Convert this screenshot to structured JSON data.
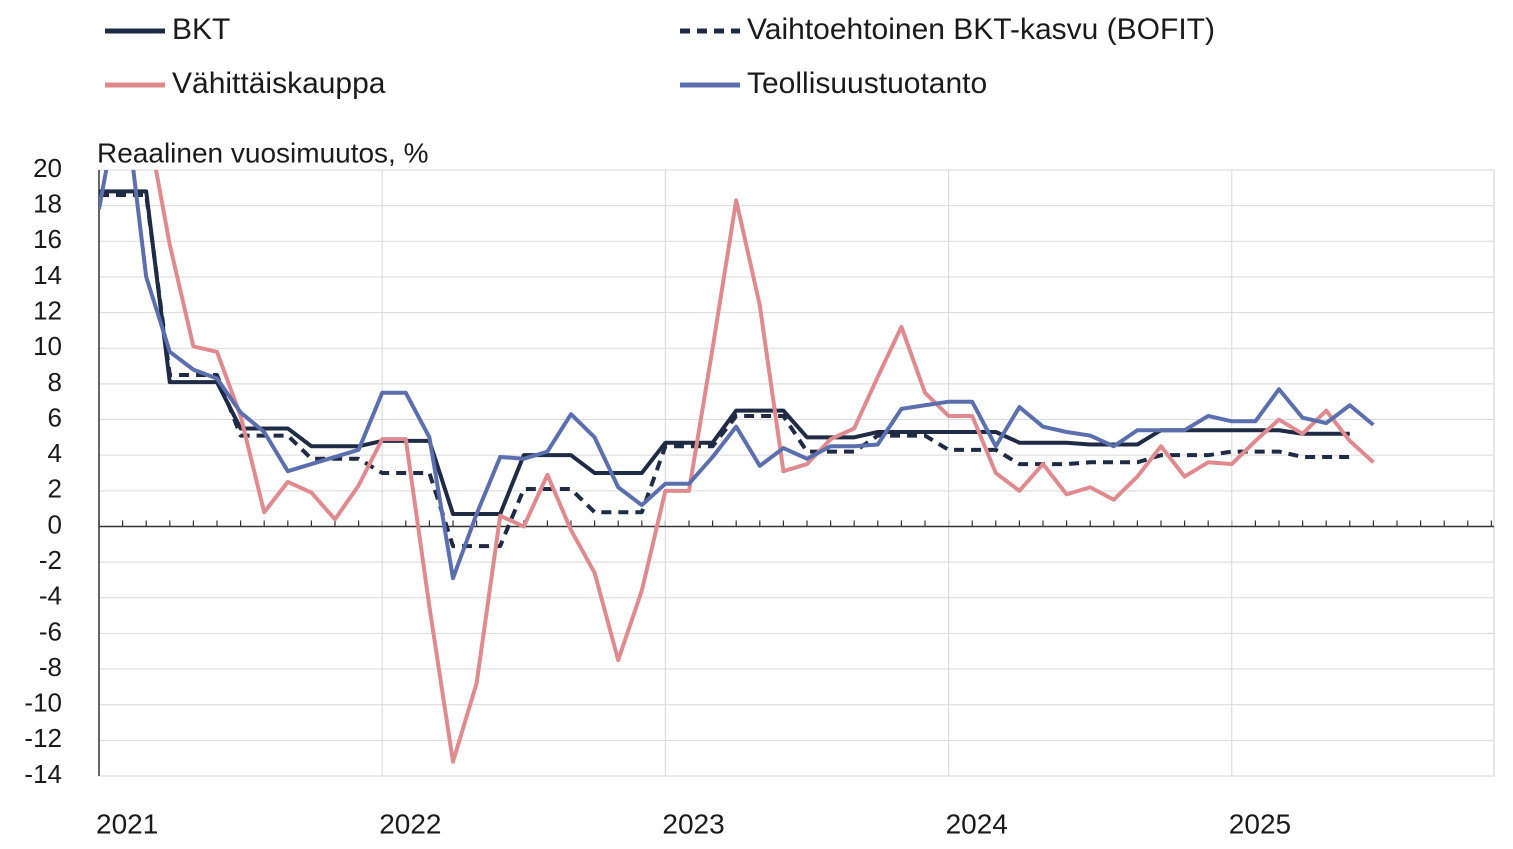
{
  "chart_data": {
    "type": "line",
    "y_label": "Reaalinen vuosimuutos, %",
    "categories": [
      "2021",
      null,
      null,
      null,
      null,
      null,
      null,
      null,
      null,
      null,
      null,
      null,
      "2022",
      null,
      null,
      null,
      null,
      null,
      null,
      null,
      null,
      null,
      null,
      null,
      "2023",
      null,
      null,
      null,
      null,
      null,
      null,
      null,
      null,
      null,
      null,
      null,
      "2024",
      null,
      null,
      null,
      null,
      null,
      null,
      null,
      null,
      null,
      null,
      null,
      "2025",
      null,
      null,
      null,
      null,
      null,
      null,
      null,
      null,
      null,
      null,
      null
    ],
    "series": [
      {
        "name": "BKT",
        "color": "#1f2a44",
        "style": "solid",
        "values": [
          18.8,
          18.8,
          18.8,
          8.1,
          8.1,
          8.1,
          5.5,
          5.5,
          5.5,
          4.5,
          4.5,
          4.5,
          4.8,
          4.8,
          4.8,
          0.7,
          0.7,
          0.7,
          4.0,
          4.0,
          4.0,
          3.0,
          3.0,
          3.0,
          4.7,
          4.7,
          4.7,
          6.5,
          6.5,
          6.5,
          5.0,
          5.0,
          5.0,
          5.3,
          5.3,
          5.3,
          5.3,
          5.3,
          5.3,
          4.7,
          4.7,
          4.7,
          4.6,
          4.6,
          4.6,
          5.4,
          5.4,
          5.4,
          5.4,
          5.4,
          5.4,
          5.2,
          5.2,
          5.2,
          null,
          null,
          null,
          null,
          null,
          null
        ]
      },
      {
        "name": "Vaihtoehtoinen BKT-kasvu (BOFIT)",
        "color": "#1f2a44",
        "style": "dashed",
        "values": [
          18.6,
          18.6,
          18.6,
          8.5,
          8.5,
          8.5,
          5.1,
          5.1,
          5.1,
          3.8,
          3.8,
          3.8,
          3.0,
          3.0,
          3.0,
          -1.1,
          -1.1,
          -1.1,
          2.1,
          2.1,
          2.1,
          0.8,
          0.8,
          0.8,
          4.5,
          4.5,
          4.5,
          6.2,
          6.2,
          6.2,
          4.2,
          4.2,
          4.2,
          5.1,
          5.1,
          5.1,
          4.3,
          4.3,
          4.3,
          3.5,
          3.5,
          3.5,
          3.6,
          3.6,
          3.6,
          4.0,
          4.0,
          4.0,
          4.2,
          4.2,
          4.2,
          3.9,
          3.9,
          3.9,
          null,
          null,
          null,
          null,
          null,
          null
        ]
      },
      {
        "name": "Vähittäiskauppa",
        "color": "#e08a8f",
        "style": "solid",
        "values": [
          null,
          null,
          23,
          15.8,
          10.1,
          9.8,
          6.2,
          0.8,
          2.5,
          1.9,
          0.4,
          2.3,
          4.9,
          4.9,
          -4.5,
          -13.2,
          -8.8,
          0.6,
          0.0,
          2.9,
          -0.2,
          -2.6,
          -7.5,
          -3.6,
          2.0,
          2.0,
          10,
          18.3,
          12.4,
          3.1,
          3.5,
          4.9,
          5.5,
          8.4,
          11.2,
          7.5,
          6.2,
          6.2,
          3.0,
          2.0,
          3.5,
          1.8,
          2.2,
          1.5,
          2.8,
          4.5,
          2.8,
          3.6,
          3.5,
          4.8,
          6.0,
          5.2,
          6.5,
          4.8,
          3.6,
          null,
          null,
          null,
          null,
          null
        ]
      },
      {
        "name": "Teollisuustuotanto",
        "color": "#5b6fae",
        "style": "solid",
        "values": [
          17.8,
          25,
          14.0,
          9.8,
          8.8,
          8.3,
          6.4,
          5.3,
          3.1,
          3.5,
          3.9,
          4.3,
          7.5,
          7.5,
          5.0,
          -2.9,
          0.7,
          3.9,
          3.8,
          4.2,
          6.3,
          5.0,
          2.2,
          1.2,
          2.4,
          2.4,
          3.9,
          5.6,
          3.4,
          4.4,
          3.8,
          4.5,
          4.5,
          4.6,
          6.6,
          6.8,
          7.0,
          7.0,
          4.5,
          6.7,
          5.6,
          5.3,
          5.1,
          4.5,
          5.4,
          5.4,
          5.4,
          6.2,
          5.9,
          5.9,
          7.7,
          6.1,
          5.8,
          6.8,
          5.7,
          null,
          null,
          null,
          null,
          null
        ]
      }
    ],
    "ylim": [
      -14,
      20
    ],
    "yticks": [
      -14,
      -12,
      -10,
      -8,
      -6,
      -4,
      -2,
      0,
      2,
      4,
      6,
      8,
      10,
      12,
      14,
      16,
      18,
      20
    ],
    "grid": true,
    "legend": "top"
  }
}
